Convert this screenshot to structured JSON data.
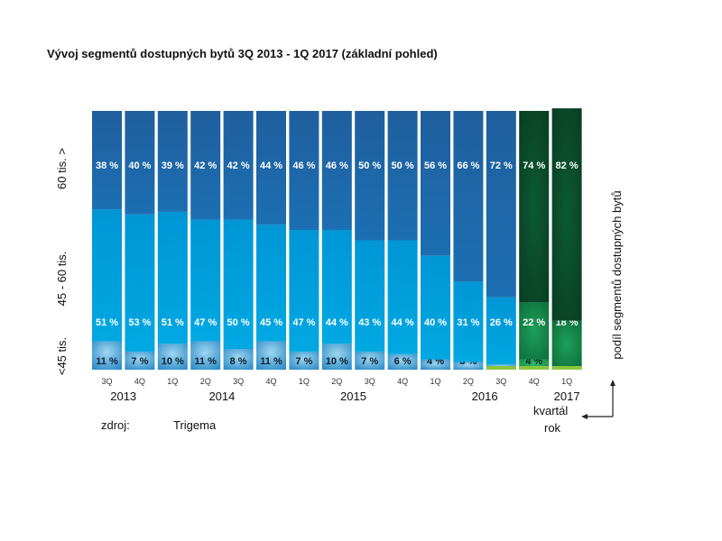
{
  "title": "Vývoj segmentů dostupných bytů 3Q 2013 - 1Q 2017 (základní pohled)",
  "chart_data": {
    "type": "bar",
    "stacked": true,
    "categories": [
      "3Q 2013",
      "4Q 2013",
      "1Q 2014",
      "2Q 2014",
      "3Q 2014",
      "4Q 2014",
      "1Q 2015",
      "2Q 2015",
      "3Q 2015",
      "4Q 2015",
      "1Q 2016",
      "2Q 2016",
      "3Q 2016",
      "4Q 2016",
      "1Q 2017"
    ],
    "quarters": [
      "3Q",
      "4Q",
      "1Q",
      "2Q",
      "3Q",
      "4Q",
      "1Q",
      "2Q",
      "3Q",
      "4Q",
      "1Q",
      "2Q",
      "3Q",
      "4Q",
      "1Q"
    ],
    "years": [
      {
        "label": "2013",
        "center_index": 0.5
      },
      {
        "label": "2014",
        "center_index": 3.5
      },
      {
        "label": "2015",
        "center_index": 7.5
      },
      {
        "label": "2016",
        "center_index": 11.5
      },
      {
        "label": "2017",
        "center_index": 14
      }
    ],
    "series": [
      {
        "name": "<45 tis.",
        "values": [
          11,
          7,
          10,
          11,
          8,
          11,
          7,
          10,
          7,
          6,
          4,
          3,
          2,
          4,
          1
        ]
      },
      {
        "name": "45 - 60 tis.",
        "values": [
          51,
          53,
          51,
          47,
          50,
          45,
          47,
          44,
          43,
          44,
          40,
          31,
          26,
          22,
          18
        ]
      },
      {
        "name": "60 tis. >",
        "values": [
          38,
          40,
          39,
          42,
          42,
          44,
          46,
          46,
          50,
          50,
          56,
          66,
          72,
          74,
          82
        ]
      }
    ],
    "percent_suffix": " %",
    "ylim": [
      0,
      100
    ],
    "highlight_categories": [
      "4Q 2016",
      "1Q 2017"
    ],
    "y_axis_label": "podíl segmentů dostupných bytů",
    "x_axis_labels": [
      "kvartál",
      "rok"
    ],
    "colors": {
      "low": "#4ba6d8",
      "mid": "#00a1dc",
      "high": "#1f5f9e",
      "low_hl": "#1e9b4a",
      "mid_hl": "#118a43",
      "high_hl": "#0b4c2b",
      "lime": "#8cc63f"
    }
  },
  "source_label": "zdroj:",
  "source_value": "Trigema"
}
